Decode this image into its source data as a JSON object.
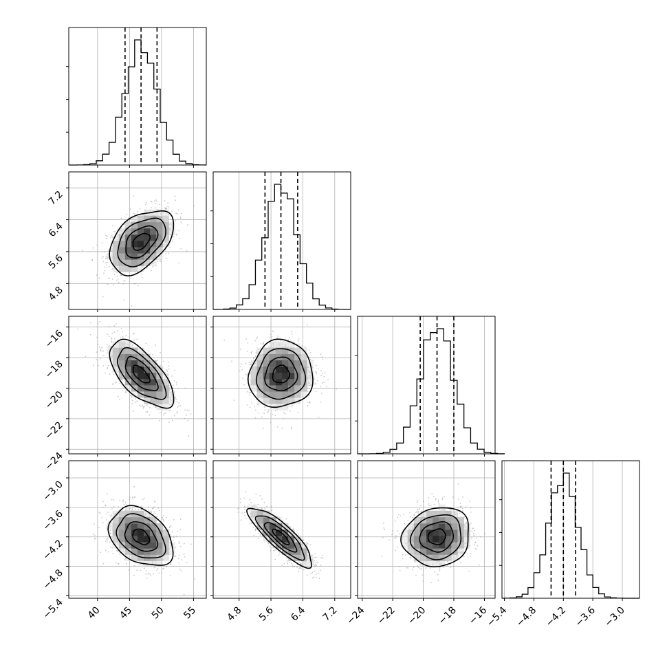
{
  "chart_data": {
    "type": "corner",
    "grid": true,
    "parameters": [
      {
        "ticks": [
          40,
          45,
          50,
          55
        ],
        "tick_labels": [
          "40",
          "45",
          "50",
          "55"
        ],
        "range": [
          35.5,
          57.0
        ],
        "mean": 46.8,
        "sd": 2.5,
        "quantiles": [
          44.3,
          46.8,
          49.3
        ]
      },
      {
        "ticks": [
          4.8,
          5.6,
          6.4,
          7.2
        ],
        "tick_labels": [
          "4.8",
          "5.6",
          "6.4",
          "7.2"
        ],
        "range": [
          4.15,
          7.6
        ],
        "mean": 5.85,
        "sd": 0.4,
        "quantiles": [
          5.45,
          5.85,
          6.27
        ]
      },
      {
        "ticks": [
          -24,
          -22,
          -20,
          -18,
          -16
        ],
        "tick_labels": [
          "−24",
          "−22",
          "−20",
          "−18",
          "−16"
        ],
        "range": [
          -24.3,
          -15.3
        ],
        "mean": -19.1,
        "sd": 1.1,
        "quantiles": [
          -20.2,
          -19.1,
          -18.0
        ]
      },
      {
        "ticks": [
          -5.4,
          -4.8,
          -4.2,
          -3.6,
          -3.0
        ],
        "tick_labels": [
          "−5.4",
          "−4.8",
          "−4.2",
          "−3.6",
          "−3.0"
        ],
        "range": [
          -5.45,
          -2.65
        ],
        "mean": -4.2,
        "sd": 0.3,
        "quantiles": [
          -4.45,
          -4.2,
          -3.95
        ]
      }
    ],
    "correlations": {
      "1,0": 0.45,
      "2,0": -0.65,
      "2,1": 0.05,
      "3,0": -0.35,
      "3,1": -0.85,
      "3,2": 0.1
    },
    "hist_bins": 20,
    "contour_levels_sigma": [
      0.5,
      1.0,
      1.5,
      2.0
    ]
  }
}
